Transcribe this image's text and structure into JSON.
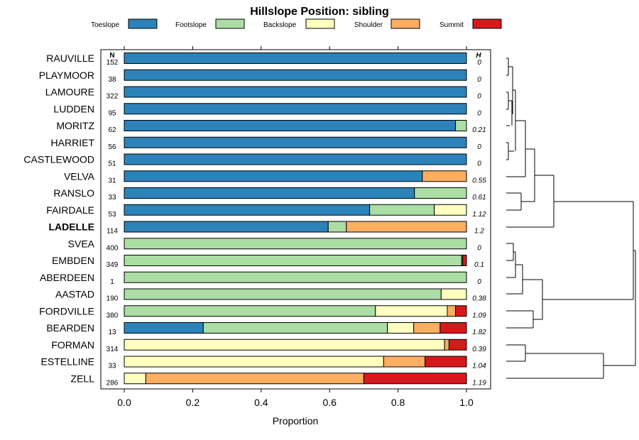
{
  "chart_data": {
    "type": "bar",
    "orientation": "horizontal",
    "stacked": true,
    "title": "Hillslope Position: sibling",
    "xlabel": "Proportion",
    "xlim": [
      0,
      1
    ],
    "xticks": [
      "0.0",
      "0.2",
      "0.4",
      "0.6",
      "0.8",
      "1.0"
    ],
    "n_header": "N",
    "h_header": "H",
    "legend": [
      {
        "name": "Toeslope",
        "color": "#2b83ba"
      },
      {
        "name": "Footslope",
        "color": "#abdda4"
      },
      {
        "name": "Backslope",
        "color": "#ffffbf"
      },
      {
        "name": "Shoulder",
        "color": "#fdae61"
      },
      {
        "name": "Summit",
        "color": "#d7191c"
      }
    ],
    "rows": [
      {
        "label": "RAUVILLE",
        "n": "152",
        "h": "0",
        "values": [
          1,
          0,
          0,
          0,
          0
        ]
      },
      {
        "label": "PLAYMOOR",
        "n": "38",
        "h": "0",
        "values": [
          1,
          0,
          0,
          0,
          0
        ]
      },
      {
        "label": "LAMOURE",
        "n": "322",
        "h": "0",
        "values": [
          1,
          0,
          0,
          0,
          0
        ]
      },
      {
        "label": "LUDDEN",
        "n": "95",
        "h": "0",
        "values": [
          1,
          0,
          0,
          0,
          0
        ]
      },
      {
        "label": "MORITZ",
        "n": "62",
        "h": "0.21",
        "values": [
          0.968,
          0.032,
          0,
          0,
          0
        ]
      },
      {
        "label": "HARRIET",
        "n": "56",
        "h": "0",
        "values": [
          1,
          0,
          0,
          0,
          0
        ]
      },
      {
        "label": "CASTLEWOOD",
        "n": "51",
        "h": "0",
        "values": [
          1,
          0,
          0,
          0,
          0
        ]
      },
      {
        "label": "VELVA",
        "n": "31",
        "h": "0.55",
        "values": [
          0.871,
          0,
          0,
          0.129,
          0
        ]
      },
      {
        "label": "RANSLO",
        "n": "33",
        "h": "0.61",
        "values": [
          0.848,
          0.152,
          0,
          0,
          0
        ]
      },
      {
        "label": "FAIRDALE",
        "n": "53",
        "h": "1.12",
        "values": [
          0.717,
          0.189,
          0.094,
          0,
          0
        ]
      },
      {
        "label": "LADELLE",
        "n": "114",
        "h": "1.2",
        "bold": true,
        "values": [
          0.596,
          0.053,
          0,
          0.351,
          0
        ]
      },
      {
        "label": "SVEA",
        "n": "400",
        "h": "0",
        "values": [
          0,
          1,
          0,
          0,
          0
        ]
      },
      {
        "label": "EMBDEN",
        "n": "349",
        "h": "0.1",
        "values": [
          0,
          0.986,
          0,
          0.003,
          0.011
        ]
      },
      {
        "label": "ABERDEEN",
        "n": "1",
        "h": "0",
        "values": [
          0,
          1,
          0,
          0,
          0
        ]
      },
      {
        "label": "AASTAD",
        "n": "190",
        "h": "0.38",
        "values": [
          0,
          0.926,
          0.074,
          0,
          0
        ]
      },
      {
        "label": "FORDVILLE",
        "n": "380",
        "h": "1.09",
        "values": [
          0,
          0.734,
          0.21,
          0.024,
          0.032
        ]
      },
      {
        "label": "BEARDEN",
        "n": "13",
        "h": "1.82",
        "values": [
          0.231,
          0.538,
          0.077,
          0.077,
          0.077
        ]
      },
      {
        "label": "FORMAN",
        "n": "314",
        "h": "0.39",
        "values": [
          0,
          0,
          0.936,
          0.013,
          0.051
        ]
      },
      {
        "label": "ESTELLINE",
        "n": "33",
        "h": "1.04",
        "values": [
          0,
          0,
          0.758,
          0.121,
          0.121
        ]
      },
      {
        "label": "ZELL",
        "n": "286",
        "h": "1.19",
        "values": [
          0,
          0,
          0.063,
          0.637,
          0.3
        ]
      }
    ]
  }
}
